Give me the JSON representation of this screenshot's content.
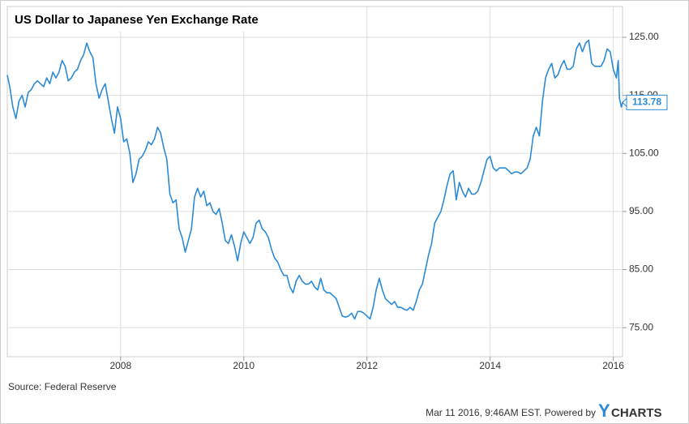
{
  "chart_data": {
    "type": "line",
    "title": "US Dollar to Japanese Yen Exchange Rate",
    "source": "Source: Federal Reserve",
    "timestamp": "Mar 11 2016, 9:46AM EST. Powered by",
    "brand": [
      "Y",
      "CHARTS"
    ],
    "x": [
      2006.16,
      2006.2,
      2006.25,
      2006.3,
      2006.35,
      2006.4,
      2006.45,
      2006.5,
      2006.55,
      2006.6,
      2006.65,
      2006.7,
      2006.75,
      2006.8,
      2006.85,
      2006.9,
      2006.95,
      2007.0,
      2007.05,
      2007.1,
      2007.15,
      2007.2,
      2007.25,
      2007.3,
      2007.35,
      2007.4,
      2007.45,
      2007.5,
      2007.55,
      2007.6,
      2007.65,
      2007.7,
      2007.75,
      2007.8,
      2007.85,
      2007.9,
      2007.95,
      2008.0,
      2008.05,
      2008.1,
      2008.15,
      2008.2,
      2008.25,
      2008.3,
      2008.35,
      2008.4,
      2008.45,
      2008.5,
      2008.55,
      2008.6,
      2008.65,
      2008.7,
      2008.75,
      2008.8,
      2008.85,
      2008.9,
      2008.95,
      2009.0,
      2009.05,
      2009.1,
      2009.15,
      2009.2,
      2009.25,
      2009.3,
      2009.35,
      2009.4,
      2009.45,
      2009.5,
      2009.55,
      2009.6,
      2009.65,
      2009.7,
      2009.75,
      2009.8,
      2009.85,
      2009.9,
      2009.95,
      2010.0,
      2010.05,
      2010.1,
      2010.15,
      2010.2,
      2010.25,
      2010.3,
      2010.35,
      2010.4,
      2010.45,
      2010.5,
      2010.55,
      2010.6,
      2010.65,
      2010.7,
      2010.75,
      2010.8,
      2010.85,
      2010.9,
      2010.95,
      2011.0,
      2011.05,
      2011.1,
      2011.15,
      2011.2,
      2011.25,
      2011.3,
      2011.35,
      2011.4,
      2011.45,
      2011.5,
      2011.55,
      2011.6,
      2011.65,
      2011.7,
      2011.75,
      2011.8,
      2011.85,
      2011.9,
      2011.95,
      2012.0,
      2012.05,
      2012.1,
      2012.15,
      2012.2,
      2012.25,
      2012.3,
      2012.35,
      2012.4,
      2012.45,
      2012.5,
      2012.55,
      2012.6,
      2012.65,
      2012.7,
      2012.75,
      2012.8,
      2012.85,
      2012.9,
      2012.95,
      2013.0,
      2013.05,
      2013.1,
      2013.15,
      2013.2,
      2013.25,
      2013.3,
      2013.35,
      2013.4,
      2013.45,
      2013.5,
      2013.55,
      2013.6,
      2013.65,
      2013.7,
      2013.75,
      2013.8,
      2013.85,
      2013.9,
      2013.95,
      2014.0,
      2014.05,
      2014.1,
      2014.15,
      2014.2,
      2014.25,
      2014.3,
      2014.35,
      2014.4,
      2014.45,
      2014.5,
      2014.55,
      2014.6,
      2014.65,
      2014.7,
      2014.75,
      2014.8,
      2014.85,
      2014.9,
      2014.95,
      2015.0,
      2015.05,
      2015.1,
      2015.15,
      2015.2,
      2015.25,
      2015.3,
      2015.35,
      2015.4,
      2015.45,
      2015.5,
      2015.55,
      2015.6,
      2015.65,
      2015.7,
      2015.75,
      2015.8,
      2015.85,
      2015.9,
      2015.95,
      2016.0,
      2016.05,
      2016.08,
      2016.1,
      2016.13,
      2016.15
    ],
    "series": [
      {
        "name": "US Dollar to Japanese Yen Exchange Rate",
        "color": "#2b8ad6",
        "values": [
          118.5,
          116.5,
          113,
          111,
          114,
          115,
          113,
          115.5,
          116,
          117,
          117.5,
          117,
          116.5,
          118,
          117,
          119,
          118,
          119,
          121,
          120,
          117.5,
          118,
          119,
          119.5,
          121,
          122,
          124,
          122.5,
          121.5,
          117,
          114.5,
          116,
          117,
          114,
          111,
          108.5,
          113,
          111,
          107,
          107.5,
          105,
          100,
          101.5,
          104,
          104.5,
          105.5,
          107,
          106.5,
          107.5,
          109.5,
          108.5,
          106,
          104,
          98,
          96.5,
          97,
          92,
          90.5,
          88,
          90,
          92,
          97.5,
          99,
          97.5,
          98.5,
          96,
          96.5,
          95,
          94.5,
          95.5,
          93,
          90,
          89.5,
          91,
          89,
          86.5,
          89.5,
          91.5,
          90.5,
          89.5,
          90.5,
          93,
          93.5,
          92,
          91.5,
          90.5,
          88.5,
          87,
          86.3,
          85,
          84,
          84,
          82,
          81,
          83,
          84,
          83,
          82.5,
          82.5,
          83,
          82,
          81.5,
          83.5,
          81.5,
          81,
          81,
          80.5,
          80,
          78.5,
          77,
          76.8,
          77,
          77.5,
          76.5,
          77.8,
          77.8,
          77.5,
          77,
          76.5,
          78.5,
          81.5,
          83.5,
          81.5,
          80,
          79.5,
          79,
          79.5,
          78.5,
          78.5,
          78.2,
          78,
          78.5,
          78,
          79.5,
          81.5,
          82.5,
          85,
          87.5,
          89.5,
          93,
          94,
          95,
          97,
          99.5,
          101.5,
          102,
          97,
          100,
          98.5,
          97.5,
          99,
          98,
          98,
          98.5,
          100,
          102,
          104,
          104.5,
          102.5,
          102,
          102.5,
          102.5,
          102.5,
          102,
          101.5,
          101.8,
          101.8,
          101.5,
          102,
          102.5,
          104,
          108,
          109.5,
          108,
          114,
          118,
          119.5,
          120.5,
          118,
          118.5,
          120,
          121,
          119.5,
          119.5,
          120,
          123,
          124,
          122.5,
          124,
          124.5,
          120.5,
          120,
          120,
          120,
          121,
          123,
          122.5,
          119.5,
          118,
          121,
          114.5,
          113,
          113.78
        ]
      }
    ],
    "xlim": [
      2006.16,
      2016.15
    ],
    "xticks": [
      2008,
      2010,
      2012,
      2014,
      2016
    ],
    "ylim": [
      70,
      130.3
    ],
    "yticks": [
      {
        "value": 75,
        "label": "75.00"
      },
      {
        "value": 85,
        "label": "85.00"
      },
      {
        "value": 95,
        "label": "95.00"
      },
      {
        "value": 105,
        "label": "105.00"
      },
      {
        "value": 115,
        "label": "115.00"
      },
      {
        "value": 125,
        "label": "125.00"
      }
    ],
    "grid": true
  }
}
